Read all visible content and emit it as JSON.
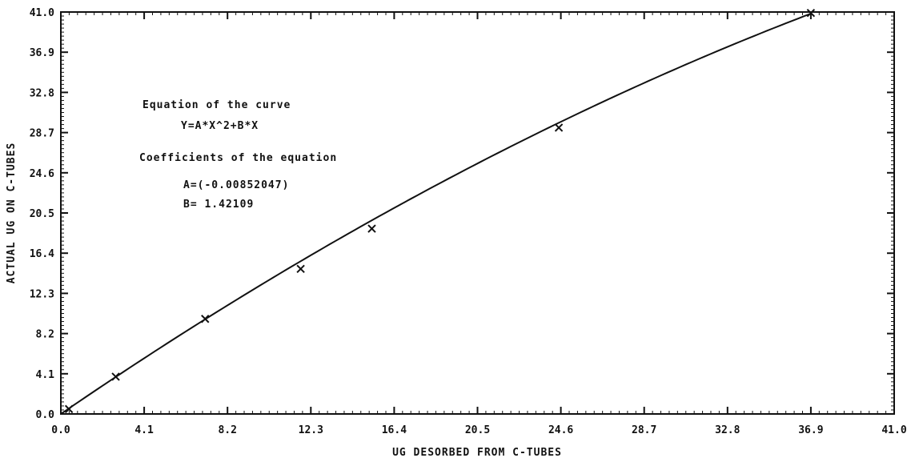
{
  "chart_data": {
    "type": "scatter",
    "title": "",
    "xlabel": "UG DESORBED FROM C-TUBES",
    "ylabel": "ACTUAL UG ON C-TUBES",
    "xlim": [
      0.0,
      41.0
    ],
    "ylim": [
      0.0,
      41.0
    ],
    "x_ticks": [
      "0.0",
      "4.1",
      "8.2",
      "12.3",
      "16.4",
      "20.5",
      "24.6",
      "28.7",
      "32.8",
      "36.9",
      "41.0"
    ],
    "y_ticks": [
      "0.0",
      "4.1",
      "8.2",
      "12.3",
      "16.4",
      "20.5",
      "24.6",
      "28.7",
      "32.8",
      "36.9",
      "41.0"
    ],
    "grid": false,
    "series": [
      {
        "marker": "x",
        "points": [
          {
            "x": 0.4,
            "y": 0.5
          },
          {
            "x": 2.7,
            "y": 3.8
          },
          {
            "x": 7.1,
            "y": 9.7
          },
          {
            "x": 11.8,
            "y": 14.8
          },
          {
            "x": 15.3,
            "y": 18.9
          },
          {
            "x": 24.5,
            "y": 29.2
          },
          {
            "x": 36.9,
            "y": 40.9
          }
        ]
      }
    ],
    "fit_curve": {
      "a": -0.00852047,
      "b": 1.42109,
      "x_range": [
        0.0,
        36.9
      ]
    },
    "annotations": {
      "eq_heading": "Equation of the curve",
      "eq_formula": "Y=A*X^2+B*X",
      "coef_heading": "Coefficients of the equation",
      "coef_a": "A=(-0.00852047)",
      "coef_b": "B= 1.42109"
    }
  }
}
